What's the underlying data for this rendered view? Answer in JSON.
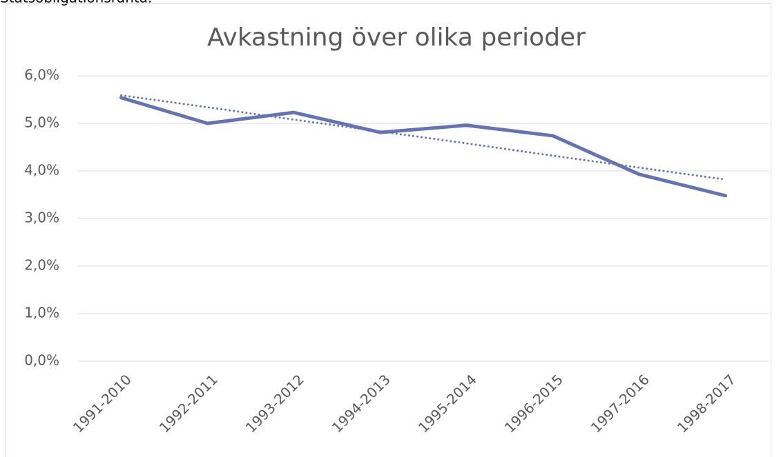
{
  "caption": "Statsobligationsränta.",
  "chart_data": {
    "type": "line",
    "title": "Avkastning över olika perioder",
    "categories": [
      "1991-2010",
      "1992-2011",
      "1993-2012",
      "1994-2013",
      "1995-2014",
      "1996-2015",
      "1997-2016",
      "1998-2017"
    ],
    "series": [
      {
        "color": "#6473b5",
        "values": [
          5.54,
          5.0,
          5.23,
          4.81,
          4.96,
          4.74,
          3.93,
          3.48
        ]
      },
      {
        "color": "#6473b5",
        "style": "dotted",
        "values": [
          5.59,
          5.34,
          5.08,
          4.83,
          4.58,
          4.32,
          4.07,
          3.82
        ]
      }
    ],
    "ylim": [
      0,
      6
    ],
    "yticks": [
      {
        "value": 0,
        "label": "0,0%"
      },
      {
        "value": 1,
        "label": "1,0%"
      },
      {
        "value": 2,
        "label": "2,0%"
      },
      {
        "value": 3,
        "label": "3,0%"
      },
      {
        "value": 4,
        "label": "4,0%"
      },
      {
        "value": 5,
        "label": "5,0%"
      },
      {
        "value": 6,
        "label": "6,0%"
      }
    ],
    "grid": true
  }
}
